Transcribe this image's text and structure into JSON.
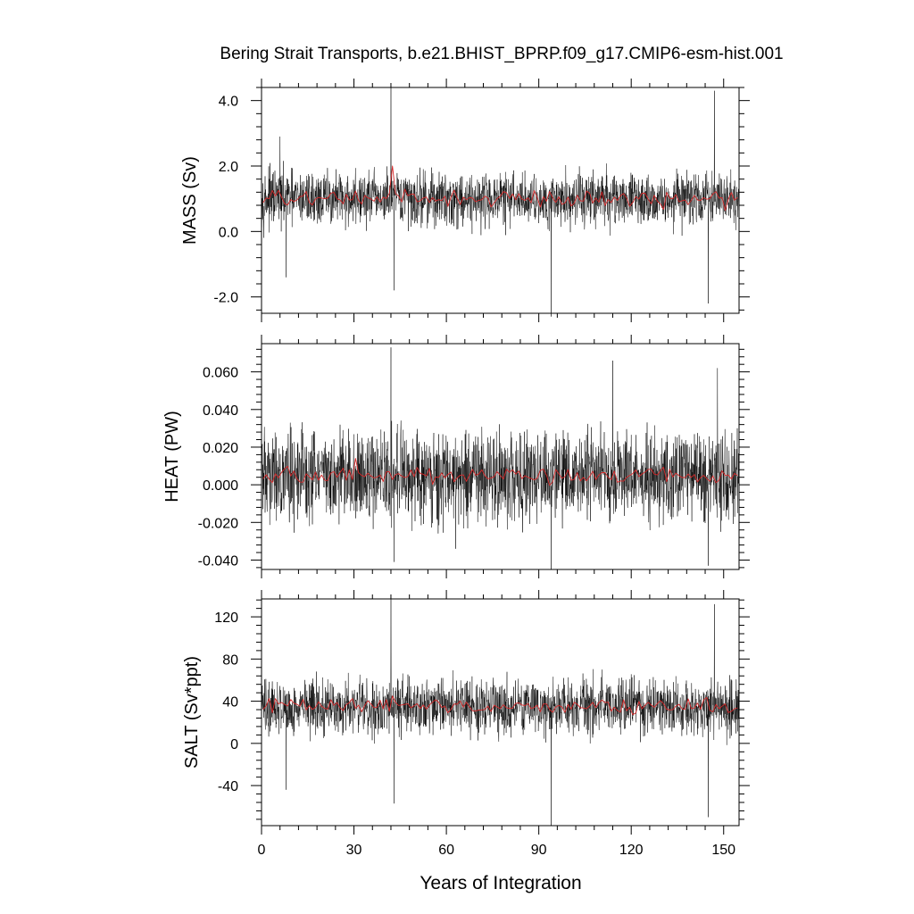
{
  "title": "Bering Strait Transports, b.e21.BHIST_BPRP.f09_g17.CMIP6-esm-hist.001",
  "xlabel": "Years of Integration",
  "colors": {
    "monthly": "#000000",
    "annual": "#d62728"
  },
  "chart_data": [
    {
      "type": "line",
      "ylabel": "MASS (Sv)",
      "xlim": [
        0,
        155
      ],
      "ylim": [
        -2.5,
        4.4
      ],
      "x_ticks": [
        "0",
        "30",
        "60",
        "90",
        "120",
        "150"
      ],
      "y_ticks": [
        "-2.0",
        "0.0",
        "2.0",
        "4.0"
      ],
      "y_tick_values": [
        -2.0,
        0.0,
        2.0,
        4.0
      ],
      "series": [
        {
          "role": "monthly",
          "mean": 1.0,
          "spread": 0.45,
          "extremes": [
            [
              42,
              4.4
            ],
            [
              147,
              4.3
            ],
            [
              94,
              -2.6
            ],
            [
              145,
              -2.2
            ],
            [
              43,
              -1.8
            ],
            [
              6,
              2.9
            ],
            [
              8,
              -1.4
            ]
          ]
        },
        {
          "role": "annual",
          "mean": 1.0,
          "spread": 0.18,
          "extremes": [
            [
              42,
              2.0
            ]
          ]
        }
      ]
    },
    {
      "type": "line",
      "ylabel": "HEAT (PW)",
      "xlim": [
        0,
        155
      ],
      "ylim": [
        -0.045,
        0.075
      ],
      "x_ticks": [
        "0",
        "30",
        "60",
        "90",
        "120",
        "150"
      ],
      "y_ticks": [
        "-0.040",
        "-0.020",
        "0.000",
        "0.020",
        "0.040",
        "0.060"
      ],
      "y_tick_values": [
        -0.04,
        -0.02,
        0.0,
        0.02,
        0.04,
        0.06
      ],
      "series": [
        {
          "role": "monthly",
          "mean": 0.005,
          "spread": 0.013,
          "extremes": [
            [
              42,
              0.073
            ],
            [
              114,
              0.066
            ],
            [
              148,
              0.062
            ],
            [
              94,
              -0.045
            ],
            [
              145,
              -0.043
            ],
            [
              43,
              -0.041
            ],
            [
              63,
              -0.034
            ]
          ]
        },
        {
          "role": "annual",
          "mean": 0.005,
          "spread": 0.003,
          "extremes": [
            [
              30,
              0.014
            ]
          ]
        }
      ]
    },
    {
      "type": "line",
      "ylabel": "SALT (Sv*ppt)",
      "xlim": [
        0,
        155
      ],
      "ylim": [
        -78,
        137
      ],
      "x_ticks": [
        "0",
        "30",
        "60",
        "90",
        "120",
        "150"
      ],
      "y_ticks": [
        "-40",
        "0",
        "40",
        "80",
        "120"
      ],
      "y_tick_values": [
        -40,
        0,
        40,
        80,
        120
      ],
      "series": [
        {
          "role": "monthly",
          "mean": 35,
          "spread": 14,
          "extremes": [
            [
              42,
              137
            ],
            [
              147,
              132
            ],
            [
              94,
              -78
            ],
            [
              145,
              -70
            ],
            [
              43,
              -57
            ],
            [
              8,
              -44
            ]
          ]
        },
        {
          "role": "annual",
          "mean": 35,
          "spread": 5,
          "extremes": [
            [
              42,
              45
            ]
          ]
        }
      ]
    }
  ]
}
